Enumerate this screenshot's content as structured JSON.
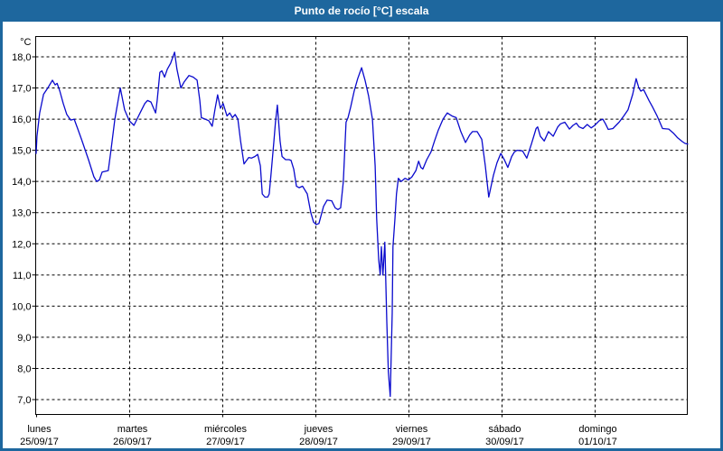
{
  "window": {
    "title": "Punto de rocío [°C] escala"
  },
  "colors": {
    "frame_blue": "#1e679e",
    "title_text": "#ffffff",
    "curve_blue": "#0a0acd",
    "grid_black": "#000000",
    "plot_background": "#ffffff"
  },
  "chart_data": {
    "type": "line",
    "title": "Punto de rocío [°C] escala",
    "y_unit_label": "°C",
    "ylim": [
      7,
      18
    ],
    "ytick_step": 1,
    "ytick_labels": [
      "18,0",
      "17,0",
      "16,0",
      "15,0",
      "14,0",
      "13,0",
      "12,0",
      "11,0",
      "10,0",
      "9,0",
      "8,0",
      "7,0"
    ],
    "grid": "dashed",
    "legend": "none",
    "x_unit": "hours since Monday 00:00",
    "xlim_hours": [
      0,
      168
    ],
    "day_ticks": [
      {
        "hour": 0,
        "name": "lunes",
        "date": "25/09/17"
      },
      {
        "hour": 24,
        "name": "martes",
        "date": "26/09/17"
      },
      {
        "hour": 48,
        "name": "miércoles",
        "date": "27/09/17"
      },
      {
        "hour": 72,
        "name": "jueves",
        "date": "28/09/17"
      },
      {
        "hour": 96,
        "name": "viernes",
        "date": "29/09/17"
      },
      {
        "hour": 120,
        "name": "sábado",
        "date": "30/09/17"
      },
      {
        "hour": 144,
        "name": "domingo",
        "date": "01/10/17"
      }
    ],
    "series": [
      {
        "name": "Punto de rocío",
        "color": "#0a0acd",
        "points": [
          [
            0,
            14.9
          ],
          [
            0.2,
            15.45
          ],
          [
            0.9,
            16.2
          ],
          [
            1.9,
            16.8
          ],
          [
            3.0,
            17.0
          ],
          [
            4.2,
            17.25
          ],
          [
            4.9,
            17.1
          ],
          [
            5.4,
            17.15
          ],
          [
            6.1,
            16.9
          ],
          [
            7.0,
            16.5
          ],
          [
            7.9,
            16.15
          ],
          [
            8.9,
            15.97
          ],
          [
            9.8,
            16.0
          ],
          [
            10.7,
            15.7
          ],
          [
            11.7,
            15.35
          ],
          [
            13.5,
            14.7
          ],
          [
            14.9,
            14.15
          ],
          [
            15.6,
            14.0
          ],
          [
            16.3,
            14.05
          ],
          [
            17.0,
            14.3
          ],
          [
            18.6,
            14.35
          ],
          [
            19.3,
            15.0
          ],
          [
            20.3,
            16.0
          ],
          [
            21.0,
            16.5
          ],
          [
            21.7,
            17.0
          ],
          [
            22.8,
            16.3
          ],
          [
            24.0,
            15.95
          ],
          [
            25.2,
            15.8
          ],
          [
            26.8,
            16.2
          ],
          [
            28.0,
            16.5
          ],
          [
            28.7,
            16.6
          ],
          [
            29.6,
            16.55
          ],
          [
            30.8,
            16.2
          ],
          [
            31.2,
            16.6
          ],
          [
            31.9,
            17.5
          ],
          [
            32.4,
            17.55
          ],
          [
            33.1,
            17.35
          ],
          [
            33.8,
            17.6
          ],
          [
            34.7,
            17.8
          ],
          [
            35.7,
            18.15
          ],
          [
            36.3,
            17.6
          ],
          [
            37.3,
            17.0
          ],
          [
            38.2,
            17.2
          ],
          [
            39.4,
            17.4
          ],
          [
            40.5,
            17.35
          ],
          [
            41.5,
            17.25
          ],
          [
            42.2,
            16.6
          ],
          [
            42.6,
            16.05
          ],
          [
            43.6,
            16.0
          ],
          [
            44.5,
            15.95
          ],
          [
            45.4,
            15.77
          ],
          [
            46.1,
            16.3
          ],
          [
            46.8,
            16.78
          ],
          [
            47.5,
            16.35
          ],
          [
            48.2,
            16.5
          ],
          [
            49.2,
            16.1
          ],
          [
            49.9,
            16.2
          ],
          [
            50.6,
            16.05
          ],
          [
            51.3,
            16.15
          ],
          [
            52.0,
            16.0
          ],
          [
            52.7,
            15.3
          ],
          [
            53.6,
            14.56
          ],
          [
            54.8,
            14.77
          ],
          [
            55.5,
            14.75
          ],
          [
            56.4,
            14.8
          ],
          [
            57.1,
            14.87
          ],
          [
            57.8,
            14.5
          ],
          [
            58.3,
            13.6
          ],
          [
            59.0,
            13.5
          ],
          [
            59.7,
            13.5
          ],
          [
            60.1,
            13.6
          ],
          [
            60.6,
            14.3
          ],
          [
            61.3,
            15.3
          ],
          [
            61.7,
            15.9
          ],
          [
            62.2,
            16.45
          ],
          [
            62.9,
            15.3
          ],
          [
            63.4,
            14.8
          ],
          [
            64.3,
            14.7
          ],
          [
            65.2,
            14.7
          ],
          [
            65.7,
            14.68
          ],
          [
            66.4,
            14.4
          ],
          [
            67.1,
            13.85
          ],
          [
            67.8,
            13.8
          ],
          [
            68.7,
            13.85
          ],
          [
            69.9,
            13.6
          ],
          [
            70.8,
            13.0
          ],
          [
            71.5,
            12.7
          ],
          [
            72.2,
            12.62
          ],
          [
            72.9,
            12.65
          ],
          [
            74.1,
            13.2
          ],
          [
            75.0,
            13.4
          ],
          [
            76.2,
            13.38
          ],
          [
            77.1,
            13.15
          ],
          [
            77.8,
            13.1
          ],
          [
            78.5,
            13.15
          ],
          [
            79.2,
            14.0
          ],
          [
            79.9,
            15.9
          ],
          [
            80.4,
            16.05
          ],
          [
            81.1,
            16.4
          ],
          [
            82.0,
            16.9
          ],
          [
            82.9,
            17.3
          ],
          [
            83.9,
            17.65
          ],
          [
            84.8,
            17.25
          ],
          [
            85.7,
            16.75
          ],
          [
            86.7,
            16.0
          ],
          [
            87.4,
            14.5
          ],
          [
            87.8,
            12.8
          ],
          [
            88.3,
            11.5
          ],
          [
            88.7,
            11.0
          ],
          [
            89.0,
            11.9
          ],
          [
            89.4,
            11.0
          ],
          [
            89.9,
            12.05
          ],
          [
            90.4,
            9.5
          ],
          [
            90.8,
            7.9
          ],
          [
            91.3,
            7.1
          ],
          [
            91.8,
            9.8
          ],
          [
            92.0,
            11.9
          ],
          [
            92.5,
            12.8
          ],
          [
            92.9,
            13.6
          ],
          [
            93.4,
            14.1
          ],
          [
            94.1,
            14.0
          ],
          [
            95.1,
            14.1
          ],
          [
            96.0,
            14.05
          ],
          [
            96.9,
            14.15
          ],
          [
            97.9,
            14.35
          ],
          [
            98.6,
            14.65
          ],
          [
            99.2,
            14.45
          ],
          [
            99.7,
            14.4
          ],
          [
            100.7,
            14.7
          ],
          [
            101.8,
            14.95
          ],
          [
            102.7,
            15.3
          ],
          [
            103.7,
            15.65
          ],
          [
            104.9,
            16.0
          ],
          [
            106.0,
            16.2
          ],
          [
            107.2,
            16.1
          ],
          [
            108.3,
            16.05
          ],
          [
            109.5,
            15.6
          ],
          [
            110.7,
            15.25
          ],
          [
            111.8,
            15.5
          ],
          [
            112.5,
            15.6
          ],
          [
            113.7,
            15.6
          ],
          [
            114.9,
            15.35
          ],
          [
            115.8,
            14.5
          ],
          [
            116.7,
            13.5
          ],
          [
            117.9,
            14.2
          ],
          [
            118.8,
            14.6
          ],
          [
            119.8,
            14.9
          ],
          [
            120.7,
            14.7
          ],
          [
            121.6,
            14.45
          ],
          [
            122.6,
            14.8
          ],
          [
            123.3,
            14.95
          ],
          [
            124.0,
            15.0
          ],
          [
            125.4,
            14.98
          ],
          [
            126.5,
            14.75
          ],
          [
            127.7,
            15.2
          ],
          [
            128.9,
            15.7
          ],
          [
            129.3,
            15.75
          ],
          [
            130.0,
            15.45
          ],
          [
            131.0,
            15.3
          ],
          [
            132.1,
            15.6
          ],
          [
            133.3,
            15.45
          ],
          [
            134.5,
            15.75
          ],
          [
            135.2,
            15.85
          ],
          [
            136.3,
            15.9
          ],
          [
            137.5,
            15.68
          ],
          [
            138.4,
            15.8
          ],
          [
            139.3,
            15.87
          ],
          [
            140.0,
            15.75
          ],
          [
            141.0,
            15.7
          ],
          [
            142.1,
            15.83
          ],
          [
            143.1,
            15.72
          ],
          [
            144.0,
            15.8
          ],
          [
            145.2,
            15.95
          ],
          [
            146.1,
            16.0
          ],
          [
            146.8,
            15.85
          ],
          [
            147.5,
            15.67
          ],
          [
            148.7,
            15.7
          ],
          [
            150.3,
            15.9
          ],
          [
            151.5,
            16.1
          ],
          [
            152.6,
            16.3
          ],
          [
            153.8,
            16.8
          ],
          [
            154.7,
            17.3
          ],
          [
            155.4,
            17.0
          ],
          [
            155.9,
            16.9
          ],
          [
            156.6,
            16.95
          ],
          [
            157.0,
            16.85
          ],
          [
            158.0,
            16.6
          ],
          [
            158.9,
            16.4
          ],
          [
            160.1,
            16.1
          ],
          [
            160.8,
            15.9
          ],
          [
            161.5,
            15.7
          ],
          [
            163.1,
            15.68
          ],
          [
            164.3,
            15.55
          ],
          [
            165.4,
            15.4
          ],
          [
            166.6,
            15.28
          ],
          [
            167.3,
            15.22
          ],
          [
            168.0,
            15.2
          ]
        ]
      }
    ]
  }
}
